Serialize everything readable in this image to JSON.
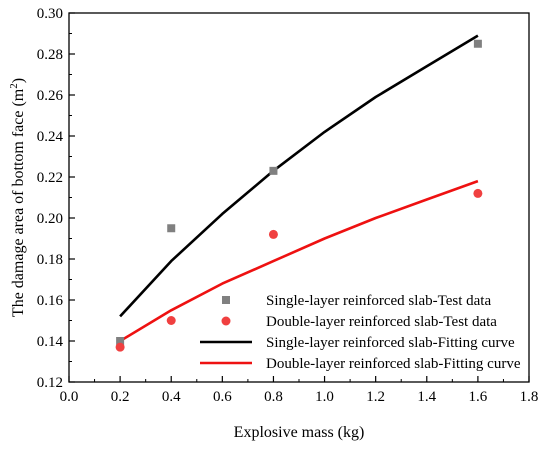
{
  "chart_data": {
    "type": "scatter",
    "title": "",
    "xlabel": "Explosive mass (kg)",
    "ylabel_main": "The damage area of bottom face (m",
    "ylabel_sup": "2",
    "ylabel_close": ")",
    "xlim": [
      0.0,
      1.8
    ],
    "ylim": [
      0.12,
      0.3
    ],
    "x_ticks": [
      "0.0",
      "0.2",
      "0.4",
      "0.6",
      "0.8",
      "1.0",
      "1.2",
      "1.4",
      "1.6",
      "1.8"
    ],
    "y_ticks": [
      "0.12",
      "0.14",
      "0.16",
      "0.18",
      "0.20",
      "0.22",
      "0.24",
      "0.26",
      "0.28",
      "0.30"
    ],
    "grid": false,
    "legend_position": "bottom-right",
    "series": [
      {
        "name": "Single-layer reinforced slab-Test data",
        "kind": "points",
        "marker": "square",
        "color": "#808080",
        "x": [
          0.2,
          0.4,
          0.8,
          1.6
        ],
        "y": [
          0.14,
          0.195,
          0.223,
          0.285
        ]
      },
      {
        "name": "Double-layer reinforced slab-Test data",
        "kind": "points",
        "marker": "circle",
        "color": "#f04040",
        "x": [
          0.2,
          0.4,
          0.8,
          1.6
        ],
        "y": [
          0.137,
          0.15,
          0.192,
          0.212
        ]
      },
      {
        "name": "Single-layer reinforced slab-Fitting curve",
        "kind": "line",
        "color": "#000000",
        "x": [
          0.2,
          0.4,
          0.6,
          0.8,
          1.0,
          1.2,
          1.4,
          1.6
        ],
        "y": [
          0.152,
          0.179,
          0.202,
          0.223,
          0.242,
          0.259,
          0.274,
          0.289
        ]
      },
      {
        "name": "Double-layer reinforced slab-Fitting curve",
        "kind": "line",
        "color": "#ee1111",
        "x": [
          0.2,
          0.4,
          0.6,
          0.8,
          1.0,
          1.2,
          1.4,
          1.6
        ],
        "y": [
          0.14,
          0.155,
          0.168,
          0.179,
          0.19,
          0.2,
          0.209,
          0.218
        ]
      }
    ]
  }
}
